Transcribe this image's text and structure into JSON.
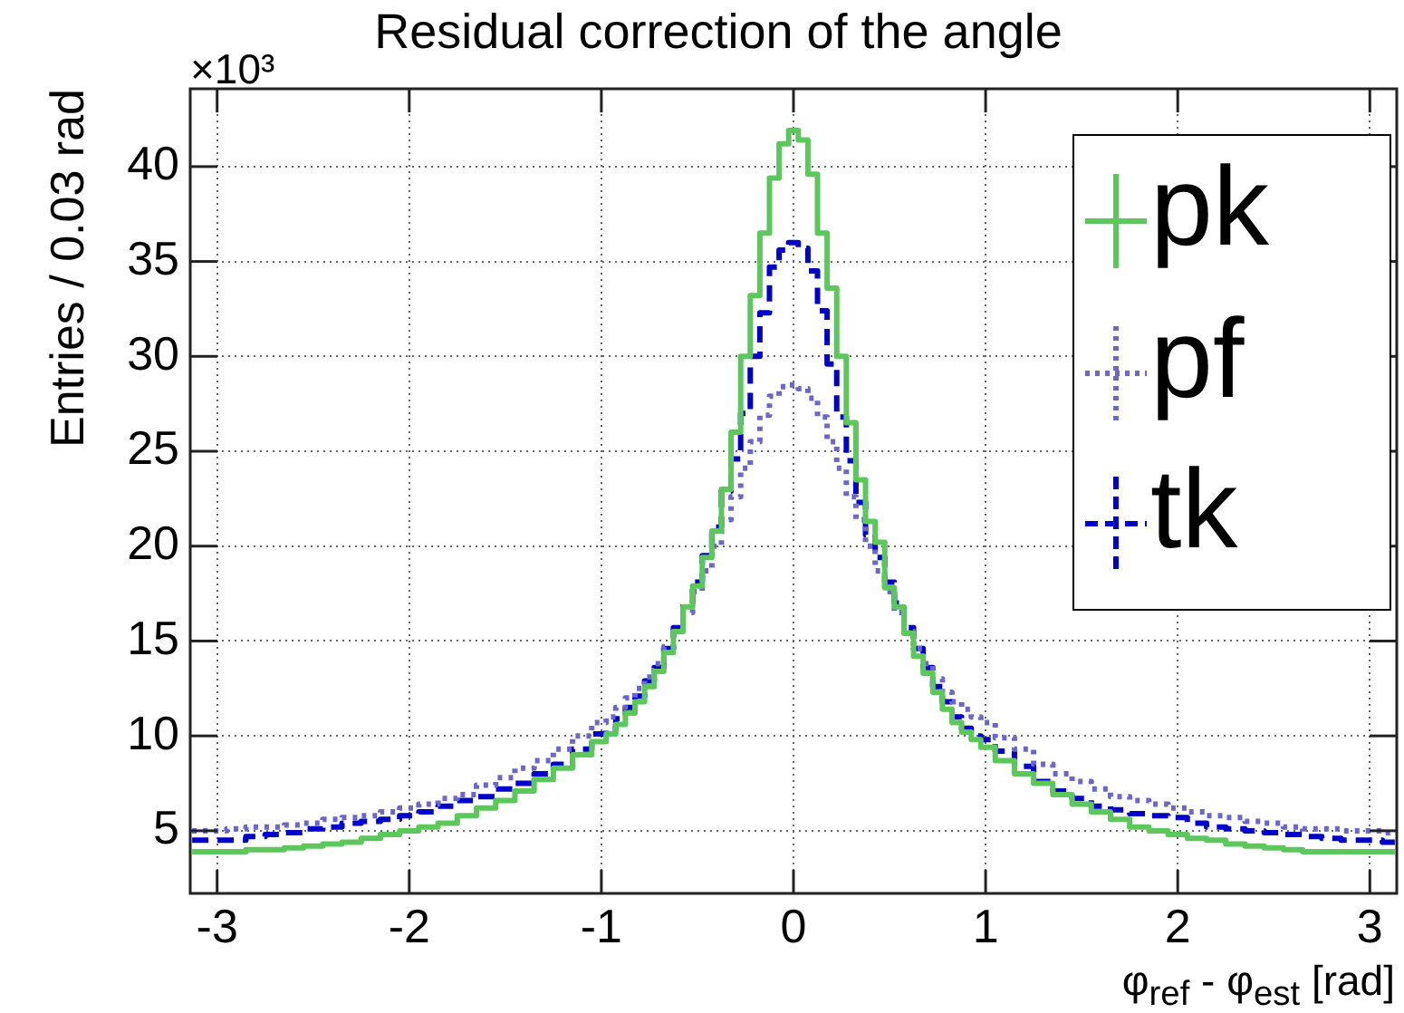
{
  "chart_data": {
    "type": "step",
    "title": "Residual correction of the angle",
    "xlabel": "φ$_{ref}$ - φ$_{est}$ [rad]",
    "ylabel": "Entries / 0.03 rad",
    "annotations": [
      "×10³"
    ],
    "x": [
      -3.13,
      -3.0,
      -2.9,
      -2.8,
      -2.7,
      -2.6,
      -2.5,
      -2.4,
      -2.3,
      -2.2,
      -2.1,
      -2.0,
      -1.9,
      -1.8,
      -1.7,
      -1.6,
      -1.5,
      -1.4,
      -1.3,
      -1.2,
      -1.1,
      -1.0,
      -0.95,
      -0.9,
      -0.85,
      -0.8,
      -0.75,
      -0.7,
      -0.65,
      -0.6,
      -0.55,
      -0.5,
      -0.45,
      -0.4,
      -0.35,
      -0.3,
      -0.25,
      -0.2,
      -0.15,
      -0.1,
      -0.05,
      0,
      0.05,
      0.1,
      0.15,
      0.2,
      0.25,
      0.3,
      0.35,
      0.4,
      0.45,
      0.5,
      0.55,
      0.6,
      0.65,
      0.7,
      0.75,
      0.8,
      0.85,
      0.9,
      0.95,
      1.0,
      1.1,
      1.2,
      1.3,
      1.4,
      1.5,
      1.6,
      1.7,
      1.8,
      1.9,
      2.0,
      2.1,
      2.2,
      2.3,
      2.4,
      2.5,
      2.6,
      2.7,
      2.8,
      2.9,
      3.0,
      3.13
    ],
    "series": [
      {
        "name": "pk",
        "color": "#5cc85c",
        "line_style": "solid",
        "values": [
          3.9,
          3.9,
          3.9,
          4.0,
          4.0,
          4.1,
          4.2,
          4.3,
          4.4,
          4.6,
          4.8,
          5.0,
          5.2,
          5.4,
          5.8,
          6.2,
          6.6,
          7.1,
          7.7,
          8.3,
          9.0,
          9.7,
          10.1,
          10.6,
          11.2,
          11.8,
          12.6,
          13.4,
          14.4,
          15.5,
          16.8,
          17.9,
          19.4,
          20.8,
          23.0,
          26.0,
          30.0,
          33.2,
          36.5,
          39.4,
          41.2,
          41.9,
          41.4,
          39.6,
          36.5,
          33.6,
          30.0,
          26.5,
          23.5,
          21.3,
          20.2,
          17.8,
          16.8,
          15.4,
          14.2,
          13.3,
          12.3,
          11.4,
          10.7,
          10.2,
          9.8,
          9.4,
          8.7,
          8.0,
          7.5,
          6.9,
          6.4,
          6.0,
          5.6,
          5.2,
          5.0,
          4.8,
          4.6,
          4.5,
          4.3,
          4.2,
          4.1,
          4.0,
          3.9,
          3.9,
          3.9,
          3.9,
          3.9
        ]
      },
      {
        "name": "pf",
        "color": "#6b66cc",
        "line_style": "dotted",
        "values": [
          5.0,
          5.0,
          5.1,
          5.2,
          5.2,
          5.3,
          5.4,
          5.6,
          5.7,
          5.8,
          6.0,
          6.2,
          6.4,
          6.7,
          6.9,
          7.4,
          7.8,
          8.3,
          8.7,
          9.3,
          10.0,
          10.7,
          11.0,
          11.5,
          12.0,
          12.5,
          13.1,
          13.8,
          14.7,
          15.5,
          16.5,
          17.6,
          18.7,
          20.0,
          21.4,
          22.6,
          24.1,
          25.5,
          26.9,
          27.9,
          28.4,
          28.5,
          28.3,
          27.8,
          26.8,
          25.5,
          24.1,
          22.6,
          21.4,
          20.0,
          18.7,
          17.6,
          16.5,
          15.5,
          14.6,
          13.8,
          13.0,
          12.3,
          11.8,
          11.4,
          11.0,
          10.7,
          9.9,
          9.3,
          8.5,
          8.0,
          7.6,
          7.2,
          6.8,
          6.6,
          6.4,
          6.2,
          6.0,
          5.8,
          5.7,
          5.5,
          5.4,
          5.2,
          5.1,
          5.1,
          5.0,
          5.0,
          4.9
        ]
      },
      {
        "name": "tk",
        "color": "#0000cc",
        "line_style": "dashed",
        "values": [
          4.5,
          4.5,
          4.5,
          4.7,
          4.8,
          4.9,
          5.1,
          5.2,
          5.4,
          5.5,
          5.6,
          5.8,
          6.0,
          6.3,
          6.6,
          6.8,
          7.2,
          7.5,
          8.0,
          8.5,
          9.3,
          10.1,
          10.4,
          10.9,
          11.5,
          12.1,
          12.9,
          13.6,
          14.6,
          15.7,
          17.0,
          18.1,
          19.5,
          21.0,
          22.9,
          24.6,
          27.0,
          30.0,
          32.3,
          34.7,
          35.6,
          36.0,
          35.7,
          34.5,
          32.4,
          29.6,
          26.8,
          24.5,
          22.3,
          20.6,
          19.4,
          18.1,
          17.0,
          15.7,
          14.6,
          13.6,
          12.6,
          11.8,
          11.0,
          10.4,
          10.0,
          9.8,
          9.2,
          8.4,
          7.6,
          7.1,
          6.7,
          6.3,
          6.1,
          5.9,
          5.8,
          5.7,
          5.4,
          5.2,
          5.1,
          5.0,
          4.9,
          4.8,
          4.7,
          4.6,
          4.5,
          4.5,
          4.4
        ]
      }
    ],
    "xlim": [
      -3.14,
      3.14
    ],
    "xticks": [
      -3,
      -2,
      -1,
      0,
      1,
      2,
      3
    ],
    "ylim": [
      1.7,
      44.1
    ],
    "yticks": [
      5,
      10,
      15,
      20,
      25,
      30,
      35,
      40
    ],
    "grid": true,
    "legend": "top right"
  }
}
